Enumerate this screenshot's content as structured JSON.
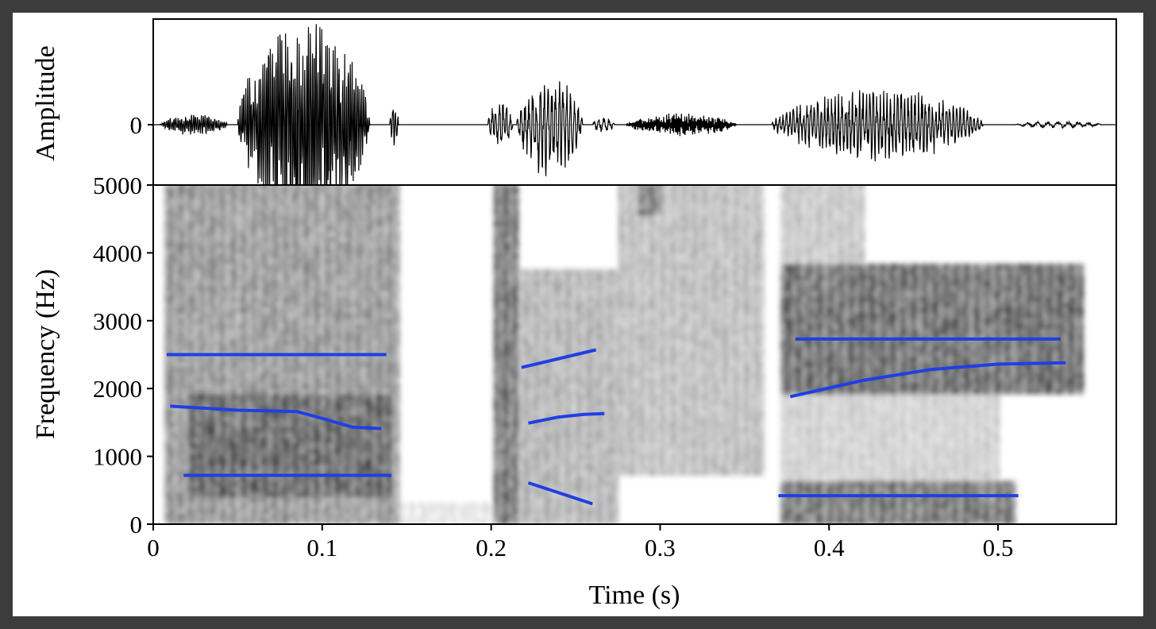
{
  "chart_data": [
    {
      "type": "line",
      "panel": "waveform",
      "ylabel": "Amplitude",
      "yticks": [
        {
          "value": 0,
          "label": "0"
        }
      ],
      "xlim": [
        0,
        0.57
      ],
      "bursts": [
        {
          "t0": 0.004,
          "t1": 0.05,
          "amp": 0.1,
          "cycles": 40
        },
        {
          "t0": 0.05,
          "t1": 0.14,
          "amp": 1.0,
          "cycles": 80
        },
        {
          "t0": 0.14,
          "t1": 0.146,
          "amp": 0.2,
          "cycles": 4
        },
        {
          "t0": 0.198,
          "t1": 0.215,
          "amp": 0.22,
          "cycles": 8
        },
        {
          "t0": 0.215,
          "t1": 0.26,
          "amp": 0.45,
          "cycles": 20
        },
        {
          "t0": 0.26,
          "t1": 0.275,
          "amp": 0.08,
          "cycles": 5
        },
        {
          "t0": 0.28,
          "t1": 0.355,
          "amp": 0.1,
          "cycles": 120
        },
        {
          "t0": 0.366,
          "t1": 0.51,
          "amp": 0.32,
          "cycles": 70
        },
        {
          "t0": 0.51,
          "t1": 0.57,
          "amp": 0.03,
          "cycles": 10
        }
      ]
    },
    {
      "type": "heatmap",
      "panel": "spectrogram",
      "xlabel": "Time (s)",
      "ylabel": "Frequency (Hz)",
      "xlim": [
        0,
        0.57
      ],
      "ylim": [
        0,
        5000
      ],
      "xticks": [
        {
          "value": 0,
          "label": "0"
        },
        {
          "value": 0.1,
          "label": "0.1"
        },
        {
          "value": 0.2,
          "label": "0.2"
        },
        {
          "value": 0.3,
          "label": "0.3"
        },
        {
          "value": 0.4,
          "label": "0.4"
        },
        {
          "value": 0.5,
          "label": "0.5"
        }
      ],
      "yticks": [
        {
          "value": 0,
          "label": "0"
        },
        {
          "value": 1000,
          "label": "1000"
        },
        {
          "value": 2000,
          "label": "2000"
        },
        {
          "value": 3000,
          "label": "3000"
        },
        {
          "value": 4000,
          "label": "4000"
        },
        {
          "value": 5000,
          "label": "5000"
        }
      ],
      "energy_regions": [
        {
          "t0": 0.005,
          "t1": 0.145,
          "f0": 0,
          "f1": 5000,
          "intensity": 0.55
        },
        {
          "t0": 0.02,
          "t1": 0.14,
          "f0": 400,
          "f1": 1900,
          "intensity": 0.85
        },
        {
          "t0": 0.145,
          "t1": 0.2,
          "f0": 0,
          "f1": 300,
          "intensity": 0.15
        },
        {
          "t0": 0.2,
          "t1": 0.215,
          "f0": 0,
          "f1": 5000,
          "intensity": 0.75
        },
        {
          "t0": 0.215,
          "t1": 0.275,
          "f0": 0,
          "f1": 3700,
          "intensity": 0.4
        },
        {
          "t0": 0.275,
          "t1": 0.36,
          "f0": 700,
          "f1": 5000,
          "intensity": 0.35
        },
        {
          "t0": 0.285,
          "t1": 0.3,
          "f0": 4500,
          "f1": 5000,
          "intensity": 0.7
        },
        {
          "t0": 0.37,
          "t1": 0.55,
          "f0": 1900,
          "f1": 3800,
          "intensity": 0.8
        },
        {
          "t0": 0.37,
          "t1": 0.51,
          "f0": 0,
          "f1": 600,
          "intensity": 0.75
        },
        {
          "t0": 0.37,
          "t1": 0.5,
          "f0": 600,
          "f1": 1900,
          "intensity": 0.25
        },
        {
          "t0": 0.37,
          "t1": 0.42,
          "f0": 3800,
          "f1": 5000,
          "intensity": 0.3
        }
      ],
      "series": [
        {
          "x": [
            0.008,
            0.138
          ],
          "y": [
            2500,
            2500
          ]
        },
        {
          "x": [
            0.01,
            0.05,
            0.085,
            0.1,
            0.118,
            0.135
          ],
          "y": [
            1740,
            1680,
            1660,
            1560,
            1430,
            1410
          ]
        },
        {
          "x": [
            0.018,
            0.141
          ],
          "y": [
            720,
            720
          ]
        },
        {
          "x": [
            0.218,
            0.262
          ],
          "y": [
            2310,
            2570
          ]
        },
        {
          "x": [
            0.222,
            0.24,
            0.255,
            0.267
          ],
          "y": [
            1490,
            1580,
            1620,
            1630
          ]
        },
        {
          "x": [
            0.222,
            0.26
          ],
          "y": [
            610,
            300
          ]
        },
        {
          "x": [
            0.38,
            0.537
          ],
          "y": [
            2730,
            2730
          ]
        },
        {
          "x": [
            0.377,
            0.42,
            0.46,
            0.5,
            0.54
          ],
          "y": [
            1880,
            2120,
            2280,
            2360,
            2380
          ]
        },
        {
          "x": [
            0.37,
            0.512
          ],
          "y": [
            420,
            420
          ]
        }
      ],
      "line_color": "#1f3fe6"
    }
  ]
}
